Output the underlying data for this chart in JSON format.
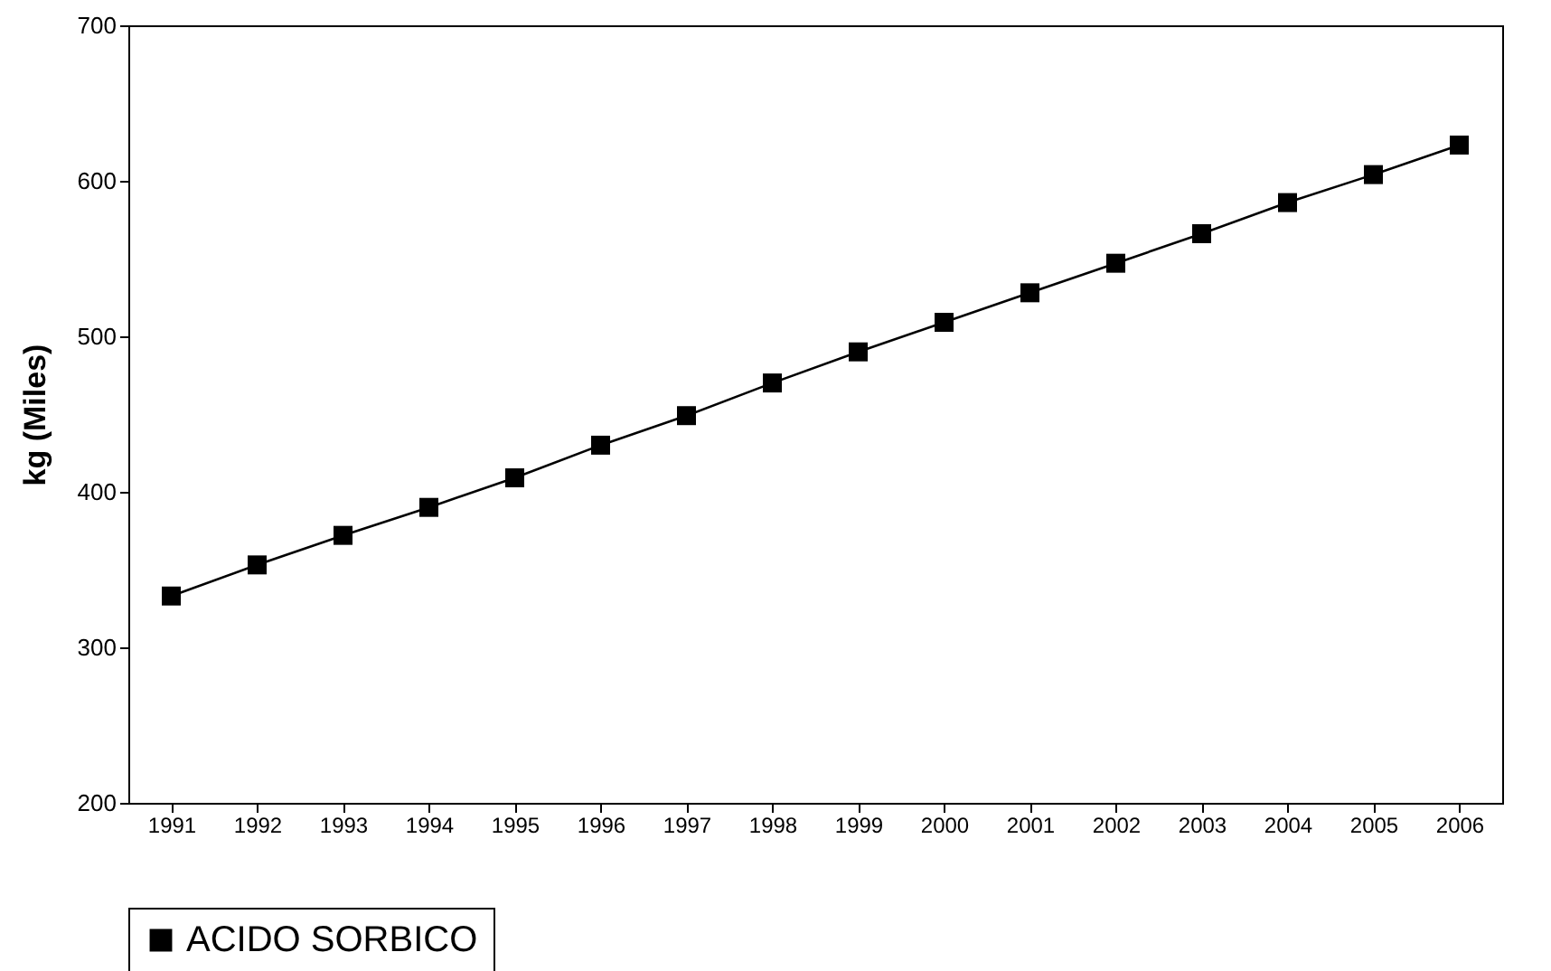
{
  "chart_data": {
    "type": "line",
    "ylabel": "kg (Miles)",
    "categories": [
      "1991",
      "1992",
      "1993",
      "1994",
      "1995",
      "1996",
      "1997",
      "1998",
      "1999",
      "2000",
      "2001",
      "2002",
      "2003",
      "2004",
      "2005",
      "2006"
    ],
    "series": [
      {
        "name": "ACIDO SORBICO",
        "color": "#000000",
        "values": [
          333,
          353,
          372,
          390,
          409,
          430,
          449,
          470,
          490,
          509,
          528,
          547,
          566,
          586,
          604,
          623
        ]
      }
    ],
    "ylim": [
      200,
      700
    ],
    "yticks": [
      200,
      300,
      400,
      500,
      600,
      700
    ],
    "grid": false,
    "legend": "bottom",
    "marker": "square",
    "line_style": "solid"
  }
}
